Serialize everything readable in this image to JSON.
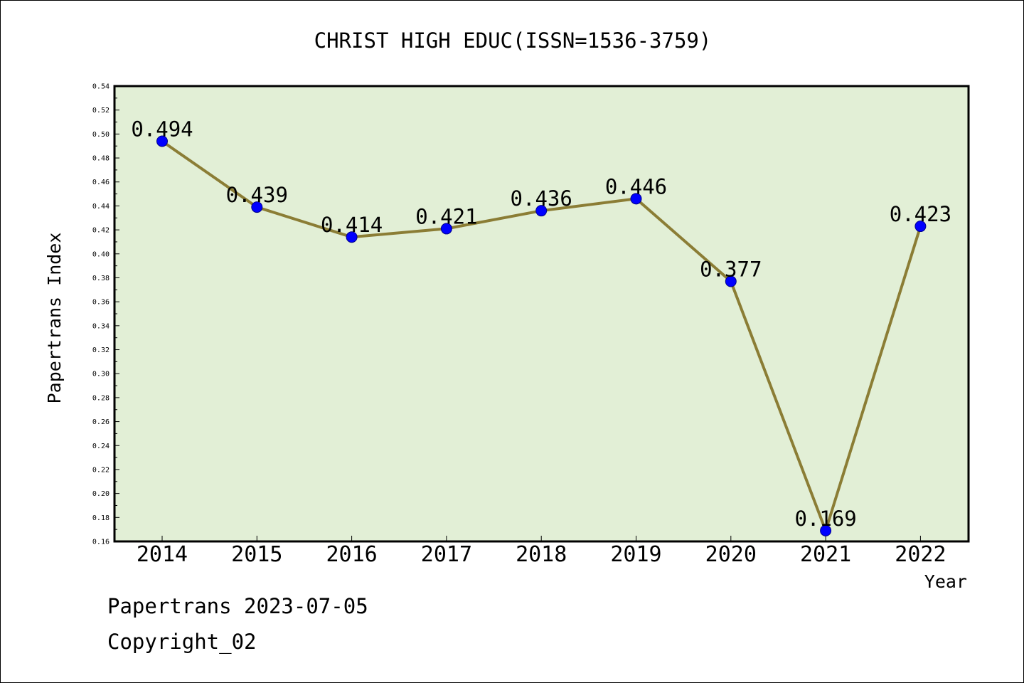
{
  "footer": {
    "line1": "Papertrans 2023-07-05",
    "line2": "Copyright_02"
  },
  "colors": {
    "plot_background": "#e2efd6",
    "line": "#8b7d35",
    "marker": "#0000ff",
    "axis": "#000000"
  },
  "chart_data": {
    "type": "line",
    "title": "CHRIST HIGH EDUC(ISSN=1536-3759)",
    "xlabel": "Year",
    "ylabel": "Papertrans Index",
    "categories": [
      "2014",
      "2015",
      "2016",
      "2017",
      "2018",
      "2019",
      "2020",
      "2021",
      "2022"
    ],
    "series": [
      {
        "values": [
          0.494,
          0.439,
          0.414,
          0.421,
          0.436,
          0.446,
          0.377,
          0.169,
          0.423
        ],
        "data_labels": [
          "0.494",
          "0.439",
          "0.414",
          "0.421",
          "0.436",
          "0.446",
          "0.377",
          "0.169",
          "0.423"
        ]
      }
    ],
    "ylim": [
      0.16,
      0.54
    ],
    "yticks": [
      "0.16",
      "0.18",
      "0.20",
      "0.22",
      "0.24",
      "0.26",
      "0.28",
      "0.30",
      "0.32",
      "0.34",
      "0.36",
      "0.38",
      "0.40",
      "0.42",
      "0.44",
      "0.46",
      "0.48",
      "0.50",
      "0.52",
      "0.54"
    ],
    "grid": false,
    "legend": "none"
  }
}
